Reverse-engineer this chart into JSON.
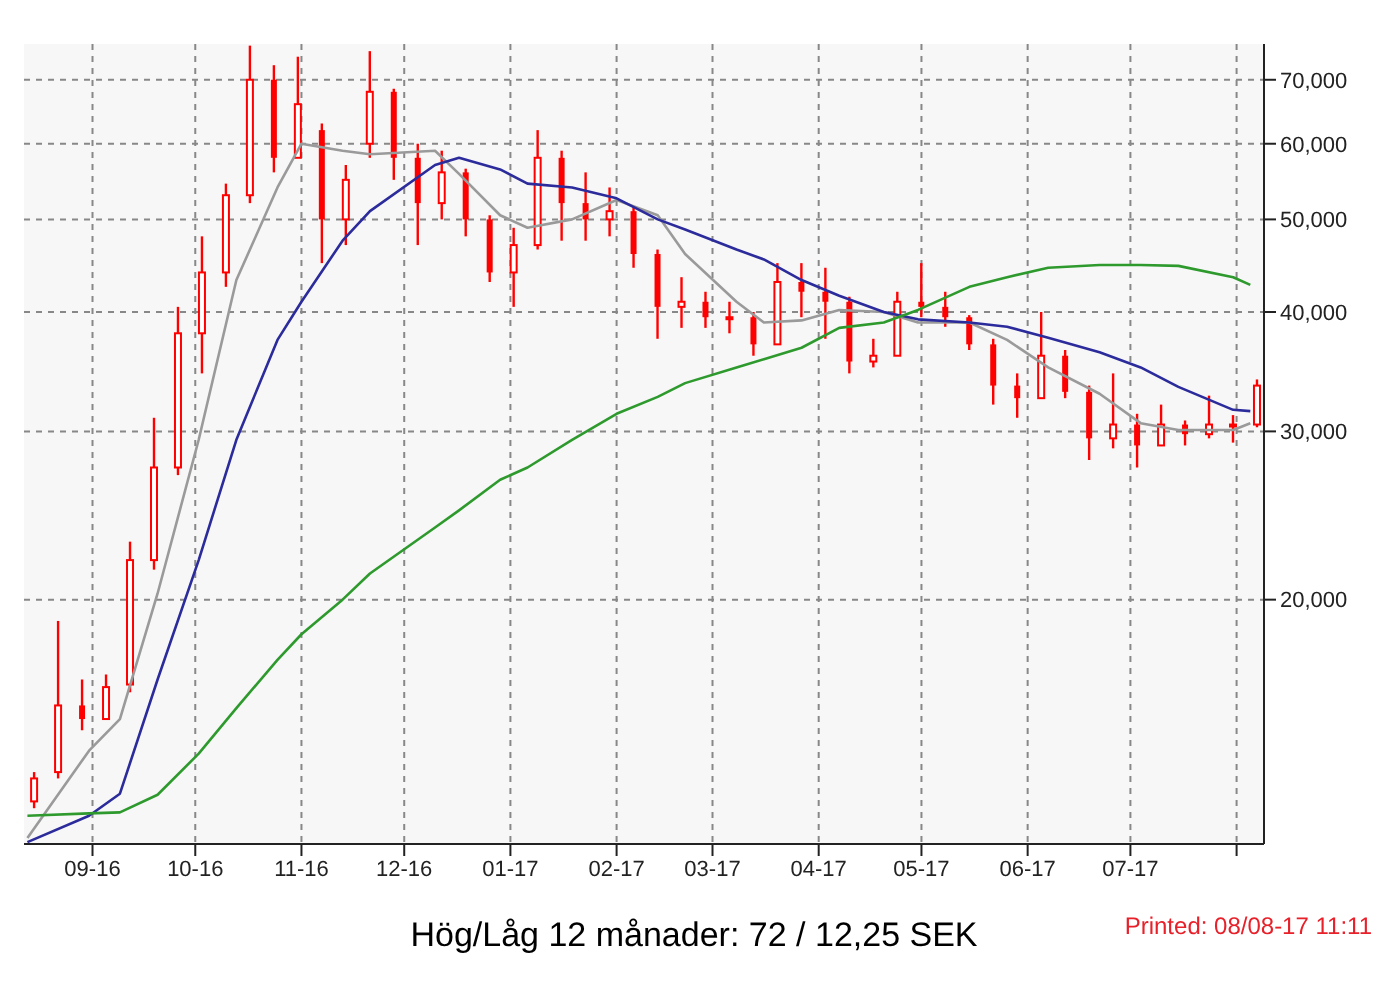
{
  "chart_data": {
    "type": "candlestick",
    "xlim": [
      "2016-08-12",
      "2017-08-09"
    ],
    "xticks": [
      {
        "value": "2016-09-01",
        "label": "09-16"
      },
      {
        "value": "2016-10-01",
        "label": "10-16"
      },
      {
        "value": "2016-11-01",
        "label": "11-16"
      },
      {
        "value": "2016-12-01",
        "label": "12-16"
      },
      {
        "value": "2017-01-01",
        "label": "01-17"
      },
      {
        "value": "2017-02-01",
        "label": "02-17"
      },
      {
        "value": "2017-03-01",
        "label": "03-17"
      },
      {
        "value": "2017-04-01",
        "label": "04-17"
      },
      {
        "value": "2017-05-01",
        "label": "05-17"
      },
      {
        "value": "2017-06-01",
        "label": "06-17"
      },
      {
        "value": "2017-07-01",
        "label": "07-17"
      },
      {
        "value": "2017-08-01",
        "label": null
      }
    ],
    "ylim": [
      11100,
      76300
    ],
    "yticks": [
      {
        "value": 20000,
        "label": "20,000"
      },
      {
        "value": 30000,
        "label": "30,000"
      },
      {
        "value": 40000,
        "label": "40,000"
      },
      {
        "value": 50000,
        "label": "50,000"
      },
      {
        "value": 60000,
        "label": "60,000"
      },
      {
        "value": 70000,
        "label": "70,000"
      }
    ],
    "log": true,
    "grid": true,
    "legend": false,
    "annotations": [
      "Hög/Låg 12 månader: 72 / 12,25 SEK",
      "Printed: 08/08-17 11:11"
    ],
    "series": [
      {
        "color": "#ff0000",
        "x": [
          "2016-08-15",
          "2016-08-22",
          "2016-08-29",
          "2016-09-05",
          "2016-09-12",
          "2016-09-19",
          "2016-09-26",
          "2016-10-03",
          "2016-10-10",
          "2016-10-17",
          "2016-10-24",
          "2016-10-31",
          "2016-11-07",
          "2016-11-14",
          "2016-11-21",
          "2016-11-28",
          "2016-12-05",
          "2016-12-12",
          "2016-12-19",
          "2016-12-26",
          "2017-01-02",
          "2017-01-09",
          "2017-01-16",
          "2017-01-23",
          "2017-01-30",
          "2017-02-06",
          "2017-02-13",
          "2017-02-20",
          "2017-02-27",
          "2017-03-06",
          "2017-03-13",
          "2017-03-20",
          "2017-03-27",
          "2017-04-03",
          "2017-04-10",
          "2017-04-17",
          "2017-04-24",
          "2017-05-01",
          "2017-05-08",
          "2017-05-15",
          "2017-05-22",
          "2017-05-29",
          "2017-06-05",
          "2017-06-12",
          "2017-06-19",
          "2017-06-26",
          "2017-07-03",
          "2017-07-10",
          "2017-07-17",
          "2017-07-24",
          "2017-07-31",
          "2017-08-07"
        ],
        "ohlc": [
          [
            12300,
            13200,
            12100,
            13000
          ],
          [
            13200,
            19000,
            13000,
            15500
          ],
          [
            15500,
            16500,
            14600,
            15000
          ],
          [
            15000,
            16700,
            15000,
            16200
          ],
          [
            16300,
            23000,
            16000,
            22000
          ],
          [
            22000,
            31000,
            21500,
            27500
          ],
          [
            27500,
            40500,
            27000,
            38000
          ],
          [
            38000,
            48000,
            34500,
            44000
          ],
          [
            44000,
            54500,
            42500,
            53000
          ],
          [
            53000,
            76000,
            52000,
            70000
          ],
          [
            70000,
            72500,
            56000,
            58000
          ],
          [
            58000,
            74000,
            58000,
            66000
          ],
          [
            62000,
            63000,
            45000,
            50000
          ],
          [
            50000,
            57000,
            47000,
            55000
          ],
          [
            60000,
            75000,
            58000,
            68000
          ],
          [
            68000,
            68500,
            55000,
            58000
          ],
          [
            58000,
            60000,
            47000,
            52000
          ],
          [
            52000,
            59000,
            50000,
            56000
          ],
          [
            56000,
            56500,
            48000,
            50000
          ],
          [
            50000,
            50500,
            43000,
            44000
          ],
          [
            44000,
            49000,
            40500,
            47000
          ],
          [
            47000,
            62000,
            46500,
            58000
          ],
          [
            58000,
            59000,
            47500,
            52000
          ],
          [
            52000,
            56000,
            47500,
            50000
          ],
          [
            50000,
            54000,
            48000,
            51000
          ],
          [
            51000,
            51500,
            44500,
            46000
          ],
          [
            46000,
            46500,
            37500,
            40500
          ],
          [
            40500,
            43500,
            38500,
            41000
          ],
          [
            41000,
            42000,
            38500,
            39500
          ],
          [
            39500,
            41000,
            38000,
            39500
          ],
          [
            39500,
            40000,
            36000,
            37000
          ],
          [
            37000,
            45000,
            37000,
            43000
          ],
          [
            43000,
            45000,
            39500,
            42000
          ],
          [
            42000,
            44500,
            37500,
            41000
          ],
          [
            41000,
            41500,
            34500,
            35500
          ],
          [
            35500,
            37500,
            35000,
            36000
          ],
          [
            36000,
            42000,
            36000,
            41000
          ],
          [
            41000,
            45000,
            39500,
            40500
          ],
          [
            40500,
            42000,
            38600,
            39500
          ],
          [
            39500,
            39700,
            36500,
            37000
          ],
          [
            37000,
            37500,
            32000,
            33500
          ],
          [
            33500,
            34500,
            31000,
            32500
          ],
          [
            32500,
            40000,
            32500,
            36000
          ],
          [
            36000,
            36500,
            32500,
            33000
          ],
          [
            33000,
            33500,
            28000,
            29500
          ],
          [
            29500,
            34500,
            28800,
            30500
          ],
          [
            30500,
            31300,
            27500,
            29000
          ],
          [
            29000,
            32000,
            29000,
            30500
          ],
          [
            30500,
            30800,
            29000,
            29800
          ],
          [
            29800,
            32700,
            29500,
            30500
          ],
          [
            30500,
            31200,
            29200,
            30500
          ],
          [
            30500,
            34000,
            30300,
            33500
          ]
        ]
      },
      {
        "type": "line",
        "color": "#9a9a9a",
        "x": [
          "2016-08-13",
          "2016-08-31",
          "2016-09-09",
          "2016-09-20",
          "2016-10-02",
          "2016-10-13",
          "2016-10-25",
          "2016-11-01",
          "2016-11-13",
          "2016-11-21",
          "2016-12-10",
          "2016-12-17",
          "2016-12-29",
          "2017-01-06",
          "2017-01-19",
          "2017-02-01",
          "2017-02-13",
          "2017-02-21",
          "2017-03-08",
          "2017-03-16",
          "2017-03-27",
          "2017-04-07",
          "2017-04-20",
          "2017-04-30",
          "2017-05-15",
          "2017-05-26",
          "2017-06-07",
          "2017-06-22",
          "2017-07-04",
          "2017-07-15",
          "2017-07-31",
          "2017-08-05"
        ],
        "values": [
          11260,
          13900,
          15000,
          20300,
          29400,
          43200,
          54000,
          60000,
          59000,
          58500,
          59000,
          55800,
          50500,
          49000,
          50000,
          52400,
          50500,
          46000,
          41000,
          39000,
          39200,
          40200,
          40000,
          39000,
          39000,
          37400,
          35000,
          32850,
          30600,
          30100,
          30100,
          30600
        ]
      },
      {
        "type": "line",
        "color": "#2b2b9c",
        "x": [
          "2016-08-13",
          "2016-08-31",
          "2016-09-09",
          "2016-09-20",
          "2016-10-02",
          "2016-10-13",
          "2016-10-25",
          "2016-11-01",
          "2016-11-13",
          "2016-11-21",
          "2016-12-10",
          "2016-12-17",
          "2016-12-29",
          "2017-01-06",
          "2017-01-19",
          "2017-02-01",
          "2017-02-13",
          "2017-02-21",
          "2017-03-08",
          "2017-03-16",
          "2017-03-27",
          "2017-04-07",
          "2017-04-20",
          "2017-04-30",
          "2017-05-15",
          "2017-05-26",
          "2017-06-07",
          "2017-06-22",
          "2017-07-04",
          "2017-07-15",
          "2017-07-31",
          "2017-08-05"
        ],
        "values": [
          11150,
          11880,
          12530,
          16500,
          22000,
          29400,
          37400,
          41000,
          47500,
          51000,
          57000,
          58000,
          56400,
          54500,
          54000,
          52600,
          50000,
          48800,
          46500,
          45400,
          43200,
          41600,
          40000,
          39300,
          39000,
          38600,
          37600,
          36300,
          35000,
          33400,
          31600,
          31500
        ]
      },
      {
        "type": "line",
        "color": "#2e9a2e",
        "x": [
          "2016-08-13",
          "2016-08-31",
          "2016-09-09",
          "2016-09-20",
          "2016-10-02",
          "2016-10-13",
          "2016-10-25",
          "2016-11-01",
          "2016-11-13",
          "2016-11-21",
          "2016-12-10",
          "2016-12-17",
          "2016-12-29",
          "2017-01-06",
          "2017-01-19",
          "2017-02-01",
          "2017-02-13",
          "2017-02-21",
          "2017-03-08",
          "2017-03-16",
          "2017-03-27",
          "2017-04-07",
          "2017-04-20",
          "2017-04-30",
          "2017-05-15",
          "2017-05-26",
          "2017-06-07",
          "2017-06-22",
          "2017-07-04",
          "2017-07-15",
          "2017-07-31",
          "2017-08-05"
        ],
        "values": [
          11880,
          11950,
          11980,
          12500,
          13800,
          15400,
          17300,
          18400,
          20000,
          21300,
          23800,
          24800,
          26700,
          27500,
          29400,
          31300,
          32600,
          33700,
          35000,
          35700,
          36700,
          38500,
          39000,
          40200,
          42500,
          43500,
          44500,
          44800,
          44800,
          44700,
          43500,
          42700
        ]
      }
    ]
  }
}
